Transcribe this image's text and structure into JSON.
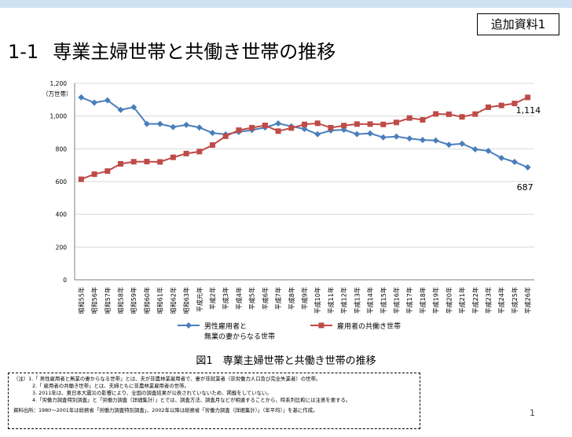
{
  "header": {
    "reference_label": "追加資料1",
    "title_number": "1-1",
    "title_text": "専業主婦世帯と共働き世帯の推移"
  },
  "chart_data": {
    "type": "line",
    "title": "",
    "ylabel": "（万世帯）",
    "xlabel": "",
    "ylim": [
      0,
      1200
    ],
    "yticks": [
      "0",
      "200",
      "400",
      "600",
      "800",
      "1,000",
      "1,200"
    ],
    "ytick_values": [
      0,
      200,
      400,
      600,
      800,
      1000,
      1200
    ],
    "grid": true,
    "legend_position": "bottom",
    "categories": [
      "昭和55年",
      "昭和56年",
      "昭和57年",
      "昭和58年",
      "昭和59年",
      "昭和60年",
      "昭和61年",
      "昭和62年",
      "昭和63年",
      "平成元年",
      "平成2年",
      "平成3年",
      "平成4年",
      "平成5年",
      "平成6年",
      "平成7年",
      "平成8年",
      "平成9年",
      "平成10年",
      "平成11年",
      "平成12年",
      "平成13年",
      "平成14年",
      "平成15年",
      "平成16年",
      "平成17年",
      "平成18年",
      "平成19年",
      "平成20年",
      "平成21年",
      "平成22年",
      "平成23年",
      "平成24年",
      "平成25年",
      "平成26年"
    ],
    "series": [
      {
        "name": "男性雇用者と\n無業の妻からなる世帯",
        "color": "#4a7ebb",
        "marker": "diamond",
        "values": [
          1114,
          1082,
          1096,
          1038,
          1054,
          952,
          952,
          933,
          946,
          930,
          897,
          888,
          903,
          915,
          930,
          955,
          937,
          921,
          889,
          912,
          916,
          890,
          894,
          870,
          875,
          863,
          854,
          851,
          825,
          831,
          797,
          787,
          744,
          720,
          687
        ],
        "end_label": "687"
      },
      {
        "name": "雇用者の共働き世帯",
        "color": "#be4b48",
        "marker": "square",
        "values": [
          614,
          645,
          664,
          708,
          721,
          722,
          720,
          748,
          771,
          783,
          823,
          877,
          914,
          929,
          943,
          908,
          927,
          949,
          956,
          929,
          942,
          951,
          951,
          949,
          961,
          988,
          977,
          1013,
          1011,
          995,
          1012,
          1054,
          1065,
          1077,
          1114
        ],
        "end_label": "1,114"
      }
    ]
  },
  "caption": "図1　専業主婦世帯と共働き世帯の推移",
  "notes": {
    "line1": "（注）1.「 男性雇用者と無業の妻からなる世帯」とは、夫が非農林業雇用者で、妻が非就業者（非労働力人口及び完全失業者）の世帯。",
    "line2": "2.「 雇用者の共働き世帯」とは、夫婦ともに非農林業雇用者の世帯。",
    "line3": "3. 2011年は、東日本大震災の影響により、全国の調査結果が公表されていないため、掲載をしていない。",
    "line4": "4.「労働力調査特別調査」と「労働力調査（詳細集計）」とでは、調査方法、調査月などが相違することから、時系列比較には注意を要する。",
    "source": "資料出所：1980～2001年は総務省「労働力調査特別調査」、2002年以降は総務省「労働力調査（詳細集計）」（年平均）」を基に作成。"
  },
  "page_number": "1"
}
